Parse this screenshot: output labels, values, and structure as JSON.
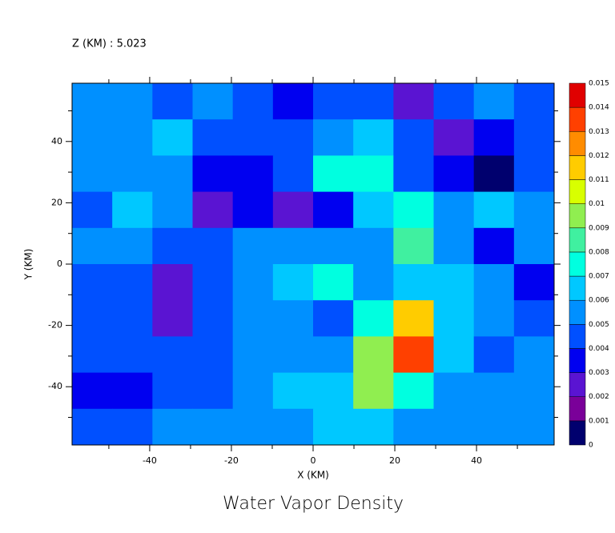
{
  "chart_data": {
    "type": "contour",
    "title": "Water Vapor Density",
    "subtitle": "Z (KM) : 5.023",
    "x_label": "X (KM)",
    "y_label": "Y (KM)",
    "xlim": [
      -59,
      59
    ],
    "ylim": [
      -59,
      59
    ],
    "xticks": [
      -40,
      -20,
      0,
      20,
      40
    ],
    "yticks": [
      -40,
      -20,
      0,
      20,
      40
    ],
    "minor_xticks": [
      -50,
      -30,
      -10,
      10,
      30,
      50
    ],
    "minor_yticks": [
      -50,
      -30,
      -10,
      10,
      30,
      50
    ],
    "levels": [
      0,
      0.001,
      0.002,
      0.003,
      0.004,
      0.005,
      0.006,
      0.007,
      0.008,
      0.009,
      0.01,
      0.011,
      0.012,
      0.013,
      0.014,
      0.015
    ],
    "colors": [
      "#00006e",
      "#7a0099",
      "#5a14d2",
      "#0000f0",
      "#0050ff",
      "#0090ff",
      "#00c8ff",
      "#00ffe0",
      "#40f0a0",
      "#90ee50",
      "#d8ff00",
      "#ffcc00",
      "#ff8c00",
      "#ff4000",
      "#e00000",
      "#980000"
    ],
    "z": [
      [
        0.005,
        0.005,
        0.004,
        0.005,
        0.004,
        0.003,
        0.004,
        0.004,
        0.002,
        0.004,
        0.005,
        0.004
      ],
      [
        0.005,
        0.005,
        0.006,
        0.004,
        0.004,
        0.004,
        0.005,
        0.006,
        0.004,
        0.002,
        0.003,
        0.004
      ],
      [
        0.005,
        0.005,
        0.005,
        0.003,
        0.003,
        0.004,
        0.007,
        0.007,
        0.004,
        0.003,
        0.0005,
        0.004
      ],
      [
        0.004,
        0.006,
        0.005,
        0.002,
        0.003,
        0.002,
        0.003,
        0.006,
        0.007,
        0.005,
        0.006,
        0.005
      ],
      [
        0.005,
        0.005,
        0.004,
        0.004,
        0.005,
        0.005,
        0.005,
        0.005,
        0.008,
        0.005,
        0.003,
        0.005
      ],
      [
        0.004,
        0.004,
        0.002,
        0.004,
        0.005,
        0.006,
        0.007,
        0.005,
        0.006,
        0.006,
        0.005,
        0.003
      ],
      [
        0.004,
        0.004,
        0.002,
        0.004,
        0.005,
        0.005,
        0.004,
        0.007,
        0.011,
        0.006,
        0.005,
        0.004
      ],
      [
        0.004,
        0.004,
        0.004,
        0.004,
        0.005,
        0.005,
        0.005,
        0.009,
        0.013,
        0.006,
        0.004,
        0.005
      ],
      [
        0.003,
        0.003,
        0.004,
        0.004,
        0.005,
        0.006,
        0.006,
        0.009,
        0.007,
        0.005,
        0.005,
        0.005
      ],
      [
        0.004,
        0.004,
        0.005,
        0.005,
        0.005,
        0.005,
        0.006,
        0.006,
        0.005,
        0.005,
        0.005,
        0.005
      ]
    ]
  }
}
